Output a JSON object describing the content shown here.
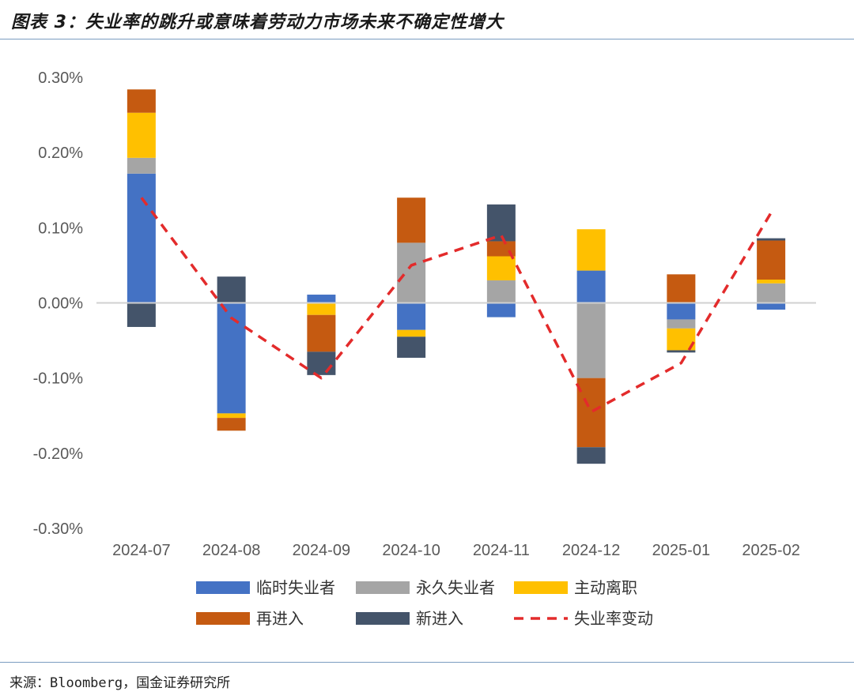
{
  "header": {
    "title": "图表 3：失业率的跳升或意味着劳动力市场未来不确定性增大"
  },
  "footer": {
    "source": "来源：Bloomberg，国金证券研究所"
  },
  "chart_data": {
    "type": "bar",
    "stacked": true,
    "categories": [
      "2024-07",
      "2024-08",
      "2024-09",
      "2024-10",
      "2024-11",
      "2024-12",
      "2025-01",
      "2025-02"
    ],
    "y_ticks": [
      "0.30%",
      "0.20%",
      "0.10%",
      "0.00%",
      "-0.10%",
      "-0.20%",
      "-0.30%"
    ],
    "ylim": [
      -0.3,
      0.3
    ],
    "series": [
      {
        "name": "临时失业者",
        "color": "#4472C4",
        "values": [
          0.172,
          -0.147,
          0.011,
          -0.036,
          -0.019,
          0.043,
          -0.022,
          -0.009
        ]
      },
      {
        "name": "永久失业者",
        "color": "#A5A5A5",
        "values": [
          0.021,
          0.0,
          0.0,
          0.08,
          0.03,
          -0.1,
          -0.012,
          0.026
        ]
      },
      {
        "name": "主动离职",
        "color": "#FFC000",
        "values": [
          0.06,
          -0.006,
          -0.016,
          -0.009,
          0.032,
          0.055,
          -0.029,
          0.005
        ]
      },
      {
        "name": "再进入",
        "color": "#C55A11",
        "values": [
          0.031,
          -0.017,
          -0.049,
          0.06,
          0.02,
          -0.092,
          0.038,
          0.052
        ]
      },
      {
        "name": "新进入",
        "color": "#44546A",
        "values": [
          -0.032,
          0.035,
          -0.031,
          -0.028,
          0.049,
          -0.022,
          -0.003,
          0.003
        ]
      }
    ],
    "line": {
      "name": "失业率变动",
      "color": "#E32B2B",
      "style": "dashed",
      "values": [
        0.14,
        -0.02,
        -0.1,
        0.05,
        0.09,
        -0.145,
        -0.08,
        0.12
      ]
    },
    "grid": false,
    "legend_position": "bottom"
  }
}
